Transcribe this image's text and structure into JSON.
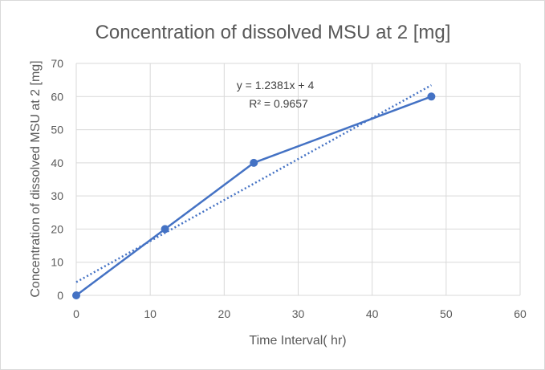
{
  "chart_data": {
    "type": "scatter",
    "title": "Concentration of dissolved MSU at 2 [mg]",
    "xlabel": "Time Interval( hr)",
    "ylabel": "Concentration of dissolved MSU at 2 [mg]",
    "xlim": [
      0,
      60
    ],
    "ylim": [
      0,
      70
    ],
    "x_ticks": [
      0,
      10,
      20,
      30,
      40,
      50,
      60
    ],
    "y_ticks": [
      0,
      10,
      20,
      30,
      40,
      50,
      60,
      70
    ],
    "grid": {
      "x": true,
      "y": true
    },
    "legend": "none",
    "series": [
      {
        "x": [
          0,
          12,
          24,
          48
        ],
        "y": [
          0,
          20,
          40,
          60
        ],
        "color": "#4472c4",
        "style": "line-with-markers"
      }
    ],
    "trendline": {
      "type": "linear",
      "slope": 1.2381,
      "intercept": 4,
      "x_range": [
        0,
        48
      ],
      "color": "#4472c4",
      "style": "dotted",
      "equation": "y = 1.2381x + 4",
      "r_squared": "R² = 0.9657"
    }
  }
}
